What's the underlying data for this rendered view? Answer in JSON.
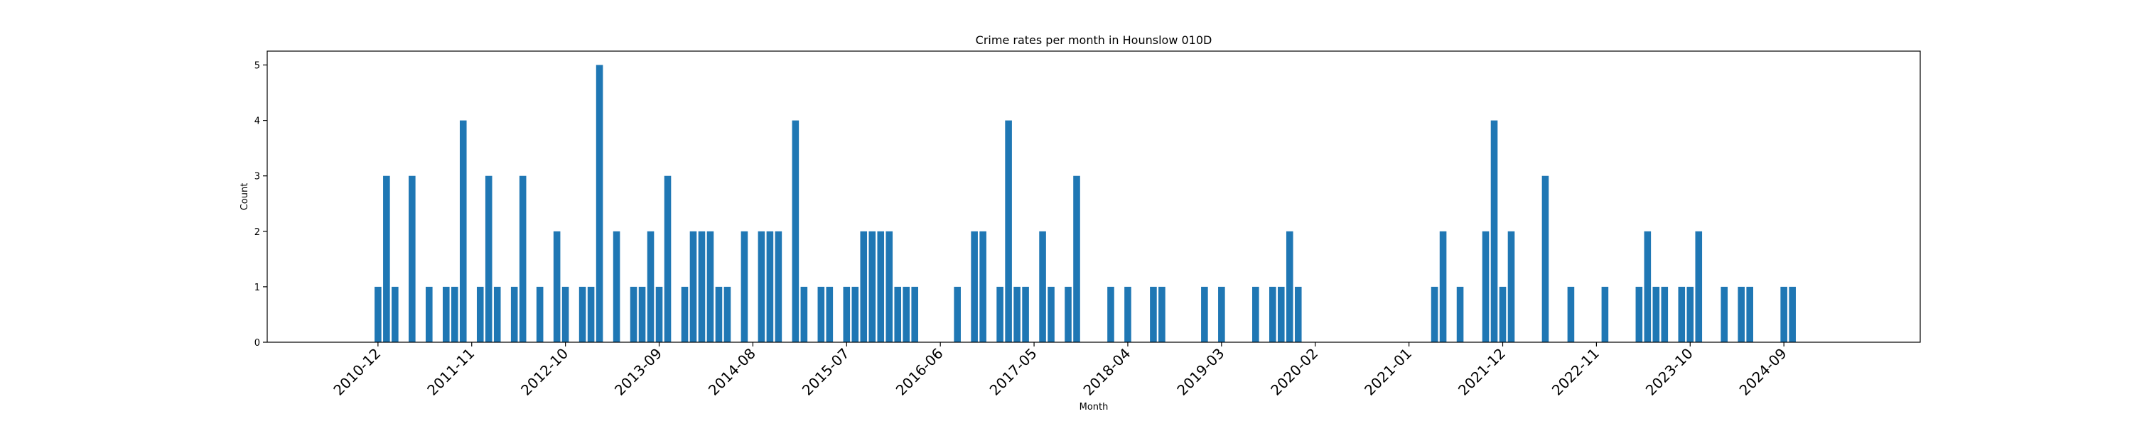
{
  "chart_data": {
    "type": "bar",
    "title": "Crime rates per month in Hounslow 010D",
    "xlabel": "Month",
    "ylabel": "Count",
    "ylim": [
      0,
      5.25
    ],
    "yticks": [
      0,
      1,
      2,
      3,
      4,
      5
    ],
    "xlim": [
      "2009-11",
      "2026-01"
    ],
    "xtick_labels": [
      "2010-12",
      "2011-11",
      "2012-10",
      "2013-09",
      "2014-08",
      "2015-07",
      "2016-06",
      "2017-05",
      "2018-04",
      "2019-03",
      "2020-02",
      "2021-01",
      "2021-12",
      "2022-11",
      "2023-10",
      "2024-09"
    ],
    "bar_color": "#1f77b4",
    "grid": false,
    "legend": "none",
    "points": [
      {
        "x": "2010-12",
        "y": 1
      },
      {
        "x": "2011-01",
        "y": 3
      },
      {
        "x": "2011-02",
        "y": 1
      },
      {
        "x": "2011-04",
        "y": 3
      },
      {
        "x": "2011-06",
        "y": 1
      },
      {
        "x": "2011-08",
        "y": 1
      },
      {
        "x": "2011-09",
        "y": 1
      },
      {
        "x": "2011-10",
        "y": 4
      },
      {
        "x": "2011-12",
        "y": 1
      },
      {
        "x": "2012-01",
        "y": 3
      },
      {
        "x": "2012-02",
        "y": 1
      },
      {
        "x": "2012-04",
        "y": 1
      },
      {
        "x": "2012-05",
        "y": 3
      },
      {
        "x": "2012-07",
        "y": 1
      },
      {
        "x": "2012-09",
        "y": 2
      },
      {
        "x": "2012-10",
        "y": 1
      },
      {
        "x": "2012-12",
        "y": 1
      },
      {
        "x": "2013-01",
        "y": 1
      },
      {
        "x": "2013-02",
        "y": 5
      },
      {
        "x": "2013-04",
        "y": 2
      },
      {
        "x": "2013-06",
        "y": 1
      },
      {
        "x": "2013-07",
        "y": 1
      },
      {
        "x": "2013-08",
        "y": 2
      },
      {
        "x": "2013-09",
        "y": 1
      },
      {
        "x": "2013-10",
        "y": 3
      },
      {
        "x": "2013-12",
        "y": 1
      },
      {
        "x": "2014-01",
        "y": 2
      },
      {
        "x": "2014-02",
        "y": 2
      },
      {
        "x": "2014-03",
        "y": 2
      },
      {
        "x": "2014-04",
        "y": 1
      },
      {
        "x": "2014-05",
        "y": 1
      },
      {
        "x": "2014-07",
        "y": 2
      },
      {
        "x": "2014-09",
        "y": 2
      },
      {
        "x": "2014-10",
        "y": 2
      },
      {
        "x": "2014-11",
        "y": 2
      },
      {
        "x": "2015-01",
        "y": 4
      },
      {
        "x": "2015-02",
        "y": 1
      },
      {
        "x": "2015-04",
        "y": 1
      },
      {
        "x": "2015-05",
        "y": 1
      },
      {
        "x": "2015-07",
        "y": 1
      },
      {
        "x": "2015-08",
        "y": 1
      },
      {
        "x": "2015-09",
        "y": 2
      },
      {
        "x": "2015-10",
        "y": 2
      },
      {
        "x": "2015-11",
        "y": 2
      },
      {
        "x": "2015-12",
        "y": 2
      },
      {
        "x": "2016-01",
        "y": 1
      },
      {
        "x": "2016-02",
        "y": 1
      },
      {
        "x": "2016-03",
        "y": 1
      },
      {
        "x": "2016-08",
        "y": 1
      },
      {
        "x": "2016-10",
        "y": 2
      },
      {
        "x": "2016-11",
        "y": 2
      },
      {
        "x": "2017-01",
        "y": 1
      },
      {
        "x": "2017-02",
        "y": 4
      },
      {
        "x": "2017-03",
        "y": 1
      },
      {
        "x": "2017-04",
        "y": 1
      },
      {
        "x": "2017-06",
        "y": 2
      },
      {
        "x": "2017-07",
        "y": 1
      },
      {
        "x": "2017-09",
        "y": 1
      },
      {
        "x": "2017-10",
        "y": 3
      },
      {
        "x": "2018-02",
        "y": 1
      },
      {
        "x": "2018-04",
        "y": 1
      },
      {
        "x": "2018-07",
        "y": 1
      },
      {
        "x": "2018-08",
        "y": 1
      },
      {
        "x": "2019-01",
        "y": 1
      },
      {
        "x": "2019-03",
        "y": 1
      },
      {
        "x": "2019-07",
        "y": 1
      },
      {
        "x": "2019-09",
        "y": 1
      },
      {
        "x": "2019-10",
        "y": 1
      },
      {
        "x": "2019-11",
        "y": 2
      },
      {
        "x": "2019-12",
        "y": 1
      },
      {
        "x": "2021-04",
        "y": 1
      },
      {
        "x": "2021-05",
        "y": 2
      },
      {
        "x": "2021-07",
        "y": 1
      },
      {
        "x": "2021-10",
        "y": 2
      },
      {
        "x": "2021-11",
        "y": 4
      },
      {
        "x": "2021-12",
        "y": 1
      },
      {
        "x": "2022-01",
        "y": 2
      },
      {
        "x": "2022-05",
        "y": 3
      },
      {
        "x": "2022-08",
        "y": 1
      },
      {
        "x": "2022-12",
        "y": 1
      },
      {
        "x": "2023-04",
        "y": 1
      },
      {
        "x": "2023-05",
        "y": 2
      },
      {
        "x": "2023-06",
        "y": 1
      },
      {
        "x": "2023-07",
        "y": 1
      },
      {
        "x": "2023-09",
        "y": 1
      },
      {
        "x": "2023-10",
        "y": 1
      },
      {
        "x": "2023-11",
        "y": 2
      },
      {
        "x": "2024-02",
        "y": 1
      },
      {
        "x": "2024-04",
        "y": 1
      },
      {
        "x": "2024-05",
        "y": 1
      },
      {
        "x": "2024-09",
        "y": 1
      },
      {
        "x": "2024-10",
        "y": 1
      }
    ]
  }
}
